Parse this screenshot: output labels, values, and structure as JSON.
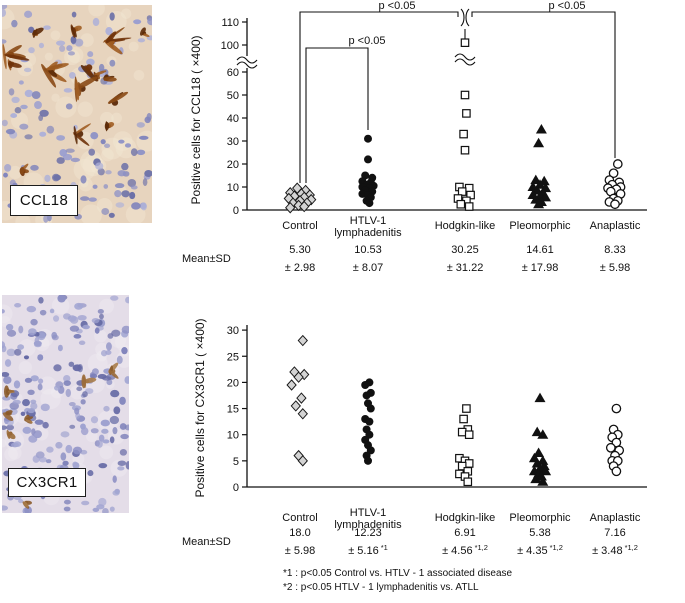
{
  "figure": {
    "micrographs": [
      {
        "label": "CCL18"
      },
      {
        "label": "CX3CR1"
      }
    ],
    "mean_sd_label": "Mean±SD",
    "footnotes": [
      "*1 : p<0.05  Control vs. HTLV - 1 associated disease",
      "*2 : p<0.05  HTLV - 1 lymphadenitis vs. ATLL"
    ]
  },
  "chart_data": [
    {
      "type": "scatter",
      "title": "CCL18 positive cells by group",
      "ylabel": "Positive cells for CCL18 ( ×400)",
      "y_ticks_lower": [
        0,
        10,
        20,
        30,
        40,
        50,
        60
      ],
      "y_ticks_upper": [
        100,
        110
      ],
      "axis_break": true,
      "ylim": [
        0,
        110
      ],
      "significance": [
        {
          "label": "p <0.05",
          "from": "Control",
          "to": "Hodgkin-like"
        },
        {
          "label": "p <0.05",
          "from": "Hodgkin-like",
          "to": "Anaplastic"
        },
        {
          "label": "p <0.05",
          "from": "Control",
          "to": "HTLV-1 lymphadenitis"
        }
      ],
      "groups": [
        {
          "name": "Control",
          "label_lines": [
            "Control"
          ],
          "marker": "diamond-open",
          "mean": "5.30",
          "sd": "± 2.98",
          "sd_note": "",
          "points": [
            [
              -2,
              9.5
            ],
            [
              4,
              8.5
            ],
            [
              -7,
              7.5
            ],
            [
              1,
              7
            ],
            [
              7,
              6.5
            ],
            [
              -4,
              6
            ],
            [
              3,
              5.5
            ],
            [
              -8,
              5
            ],
            [
              8,
              4.5
            ],
            [
              0,
              4
            ],
            [
              -5,
              3
            ],
            [
              5,
              3
            ],
            [
              -1,
              2
            ],
            [
              3,
              1.5
            ],
            [
              -7,
              1
            ]
          ]
        },
        {
          "name": "HTLV-1 lymphadenitis",
          "label_lines": [
            "HTLV-1",
            "lymphadenitis"
          ],
          "marker": "circle-filled",
          "mean": "10.53",
          "sd": "± 8.07",
          "sd_note": "",
          "points": [
            [
              0,
              31
            ],
            [
              0,
              22
            ],
            [
              -2,
              15
            ],
            [
              3,
              14
            ],
            [
              -4,
              12.5
            ],
            [
              2,
              12
            ],
            [
              -1,
              11
            ],
            [
              4,
              10.5
            ],
            [
              -4,
              10
            ],
            [
              1,
              9.5
            ],
            [
              -2,
              8.5
            ],
            [
              3,
              8
            ],
            [
              -4,
              7
            ],
            [
              0,
              6.5
            ],
            [
              2,
              5.5
            ],
            [
              -1,
              4
            ],
            [
              1,
              3
            ]
          ]
        },
        {
          "name": "Hodgkin-like",
          "label_lines": [
            "Hodgkin-like"
          ],
          "marker": "square-open",
          "mean": "30.25",
          "sd": "± 31.22",
          "sd_note": "",
          "points": [
            [
              0,
              101
            ],
            [
              0,
              50
            ],
            [
              1,
              42
            ],
            [
              -1,
              33
            ],
            [
              0,
              26
            ],
            [
              -4,
              10
            ],
            [
              3,
              9.5
            ],
            [
              -2,
              8
            ],
            [
              4,
              6.5
            ],
            [
              -5,
              5
            ],
            [
              1,
              4
            ],
            [
              -3,
              2.5
            ],
            [
              3,
              1.5
            ]
          ]
        },
        {
          "name": "Pleomorphic",
          "label_lines": [
            "Pleomorphic"
          ],
          "marker": "triangle-filled",
          "mean": "14.61",
          "sd": "± 17.98",
          "sd_note": "",
          "points": [
            [
              1,
              35
            ],
            [
              -1,
              29
            ],
            [
              -3,
              13
            ],
            [
              3,
              12.5
            ],
            [
              0,
              11
            ],
            [
              -5,
              10
            ],
            [
              4,
              9.5
            ],
            [
              -2,
              8.5
            ],
            [
              2,
              7.5
            ],
            [
              -5,
              6.5
            ],
            [
              0,
              6
            ],
            [
              4,
              5.5
            ],
            [
              -3,
              4.5
            ],
            [
              1,
              3.5
            ],
            [
              -1,
              2.5
            ]
          ]
        },
        {
          "name": "Anaplastic",
          "label_lines": [
            "Anaplastic"
          ],
          "marker": "circle-open",
          "mean": "8.33",
          "sd": "± 5.98",
          "sd_note": "",
          "points": [
            [
              2,
              20
            ],
            [
              -1,
              16
            ],
            [
              -4,
              13
            ],
            [
              3,
              12
            ],
            [
              -2,
              11
            ],
            [
              4,
              10
            ],
            [
              -5,
              9.5
            ],
            [
              1,
              9
            ],
            [
              -3,
              8
            ],
            [
              4,
              7
            ],
            [
              -1,
              5
            ],
            [
              2,
              4
            ],
            [
              -4,
              3.5
            ],
            [
              0,
              2.5
            ]
          ]
        }
      ]
    },
    {
      "type": "scatter",
      "title": "CX3CR1 positive cells by group",
      "ylabel": "Positive cells for CX3CR1 ( ×400)",
      "y_ticks_lower": [
        0,
        5,
        10,
        15,
        20,
        25,
        30
      ],
      "axis_break": false,
      "ylim": [
        0,
        30
      ],
      "significance": [],
      "groups": [
        {
          "name": "Control",
          "label_lines": [
            "Control"
          ],
          "marker": "diamond-open",
          "mean": "18.0",
          "sd": "± 5.98",
          "sd_note": "",
          "points": [
            [
              2,
              28
            ],
            [
              -4,
              22
            ],
            [
              3,
              21.5
            ],
            [
              -1,
              21
            ],
            [
              -6,
              19.5
            ],
            [
              1,
              17
            ],
            [
              -3,
              15.5
            ],
            [
              2,
              14
            ],
            [
              -1,
              6
            ],
            [
              2,
              5
            ]
          ]
        },
        {
          "name": "HTLV-1 lymphadenitis",
          "label_lines": [
            "HTLV-1",
            "lymphadenitis"
          ],
          "marker": "circle-filled",
          "mean": "12.23",
          "sd": "± 5.16",
          "sd_note": "*1",
          "points": [
            [
              1,
              20
            ],
            [
              -2,
              19.5
            ],
            [
              2,
              18
            ],
            [
              -1,
              17.5
            ],
            [
              0,
              16
            ],
            [
              2,
              15
            ],
            [
              -2,
              13
            ],
            [
              1,
              12.5
            ],
            [
              -1,
              11
            ],
            [
              1,
              10
            ],
            [
              -2,
              9
            ],
            [
              0,
              8
            ],
            [
              2,
              7
            ],
            [
              -1,
              6
            ],
            [
              0,
              5
            ]
          ]
        },
        {
          "name": "Hodgkin-like",
          "label_lines": [
            "Hodgkin-like"
          ],
          "marker": "square-open",
          "mean": "6.91",
          "sd": "± 4.56",
          "sd_note": "*1,2",
          "points": [
            [
              1,
              15
            ],
            [
              -1,
              13
            ],
            [
              2,
              11
            ],
            [
              -2,
              10.5
            ],
            [
              3,
              10
            ],
            [
              -4,
              5.5
            ],
            [
              0,
              5
            ],
            [
              3,
              4.5
            ],
            [
              -2,
              4
            ],
            [
              2,
              3
            ],
            [
              -4,
              2.5
            ],
            [
              0,
              2
            ],
            [
              2,
              1
            ]
          ]
        },
        {
          "name": "Pleomorphic",
          "label_lines": [
            "Pleomorphic"
          ],
          "marker": "triangle-filled",
          "mean": "5.38",
          "sd": "± 4.35",
          "sd_note": "*1,2",
          "points": [
            [
              0,
              17
            ],
            [
              -2,
              10.5
            ],
            [
              2,
              10
            ],
            [
              -1,
              6.5
            ],
            [
              -4,
              5.5
            ],
            [
              2,
              5
            ],
            [
              -2,
              4.5
            ],
            [
              3,
              4
            ],
            [
              0,
              3.5
            ],
            [
              -4,
              3
            ],
            [
              4,
              3
            ],
            [
              -1,
              2.5
            ],
            [
              1,
              2
            ],
            [
              -3,
              1.5
            ],
            [
              2,
              1
            ]
          ]
        },
        {
          "name": "Anaplastic",
          "label_lines": [
            "Anaplastic"
          ],
          "marker": "circle-open",
          "mean": "7.16",
          "sd": "± 3.48",
          "sd_note": "*1,2",
          "points": [
            [
              1,
              15
            ],
            [
              -1,
              11
            ],
            [
              2,
              10
            ],
            [
              -2,
              9.5
            ],
            [
              1,
              8.5
            ],
            [
              -3,
              7.5
            ],
            [
              3,
              7
            ],
            [
              0,
              6
            ],
            [
              -2,
              5
            ],
            [
              2,
              5
            ],
            [
              -1,
              4
            ],
            [
              1,
              3
            ]
          ]
        }
      ]
    }
  ]
}
